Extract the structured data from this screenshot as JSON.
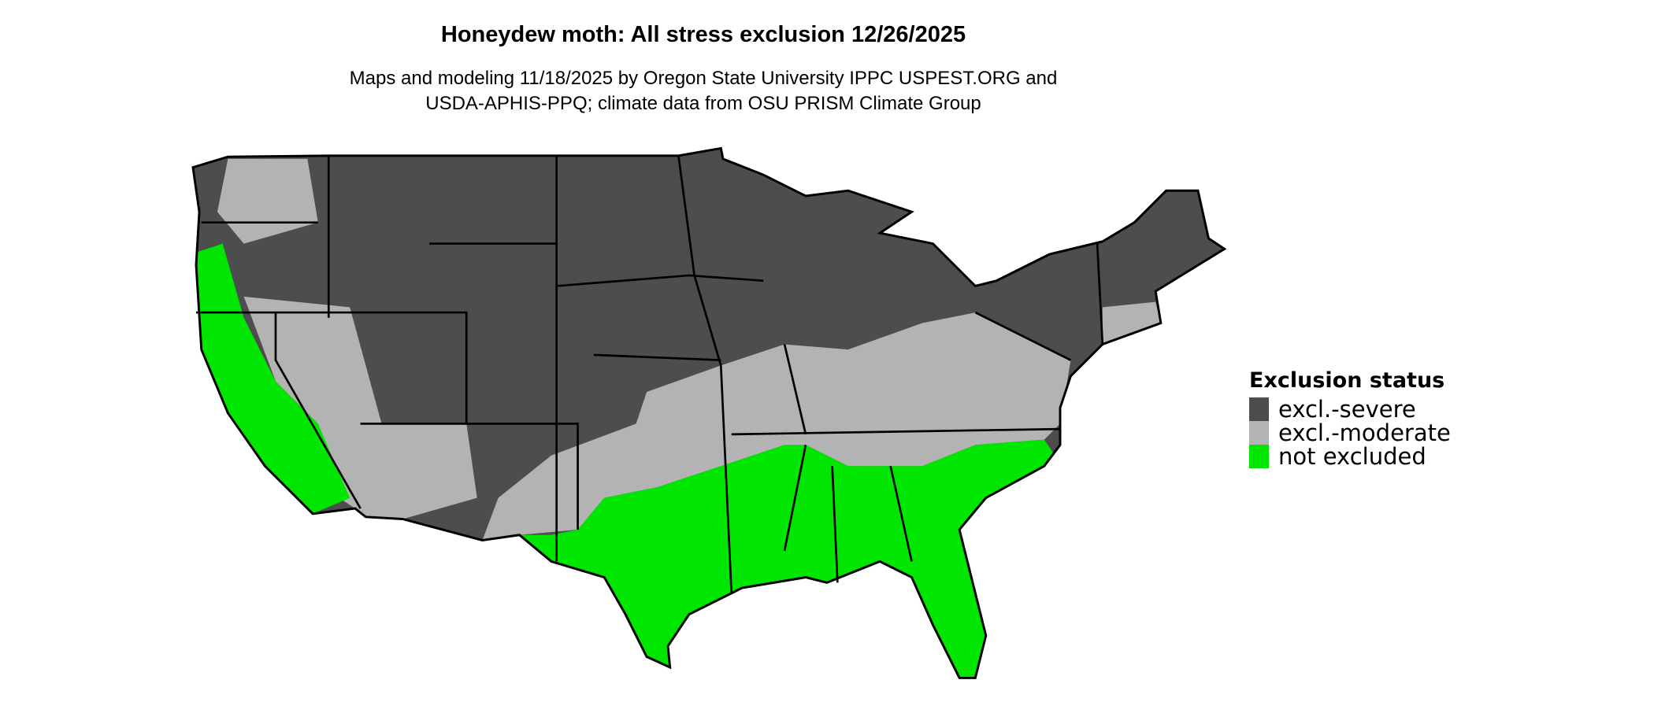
{
  "title": "Honeydew moth: All stress exclusion 12/26/2025",
  "subtitle_lines": [
    "Maps and modeling 11/18/2025 by Oregon State University IPPC USPEST.ORG and",
    "USDA-APHIS-PPQ; climate data from OSU PRISM Climate Group"
  ],
  "legend": {
    "title": "Exclusion status",
    "items": [
      {
        "label": "excl.-severe",
        "color": "#4d4d4d"
      },
      {
        "label": "excl.-moderate",
        "color": "#b3b3b3"
      },
      {
        "label": "not excluded",
        "color": "#00e600"
      }
    ]
  },
  "map": {
    "region": "Contiguous United States",
    "borders": "state boundaries"
  }
}
